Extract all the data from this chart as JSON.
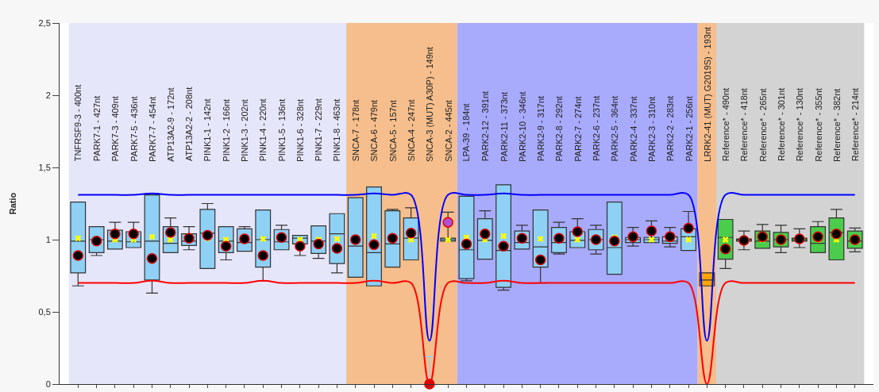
{
  "chart_data": {
    "type": "box",
    "ylabel": "Ratio",
    "categories": [
      "TNFRSF9-3 - 400nt",
      "PARK7-1 - 427nt",
      "PARK7-3 - 409nt",
      "PARK7-5 - 436nt",
      "PARK7-7 - 454nt",
      "ATP13A2-9 - 172nt",
      "ATP13A2-2 - 208nt",
      "PINK1-1 - 142nt",
      "PINK1-2 - 166nt",
      "PINK1-3 - 202nt",
      "PINK1-4 - 220nt",
      "PINK1-5 - 136nt",
      "PINK1-6 - 328nt",
      "PINK1-7 - 229nt",
      "PINK1-8 - 463nt",
      "SNCA-7 - 178nt",
      "SNCA-6 - 479nt",
      "SNCA-5 - 157nt",
      "SNCA-4 - 247nt",
      "SNCA-3 (MUT) A30P) - 149nt",
      "SNCA-2 - 445nt",
      "LPA-39 - 184nt",
      "PARK2-12 - 391nt",
      "PARK2-11 - 373nt",
      "PARK2-10 - 346nt",
      "PARK2-9 - 317nt",
      "PARK2-8 - 292nt",
      "PARK2-7 - 274nt",
      "PARK2-6 - 237nt",
      "PARK2-5 - 364nt",
      "PARK2-4 - 337nt",
      "PARK2-3 - 310nt",
      "PARK2-2 - 283nt",
      "PARK2-1 - 256nt",
      "LRRK2-41 (MUT) G2019S) - 193nt",
      "Reference* - 490nt",
      "Reference* - 418nt",
      "Reference* - 265nt",
      "Reference* - 301nt",
      "Reference* - 130nt",
      "Reference* - 355nt",
      "Reference* - 382nt",
      "Reference* - 214nt"
    ],
    "ylim": [
      0,
      2.5
    ],
    "yticks": [
      0,
      {
        "value": 0.5,
        "label": "0,5"
      },
      1,
      {
        "value": 1.5,
        "label": "1,5"
      },
      2,
      {
        "value": 2.5,
        "label": "2,5"
      }
    ],
    "grid": false,
    "bands": [
      {
        "axis": "x",
        "from": "TNFRSF9-3 - 400nt",
        "to": "PINK1-8 - 463nt",
        "color": "#e6e6fa"
      },
      {
        "axis": "x",
        "from": "SNCA-7 - 178nt",
        "to": "SNCA-2 - 445nt",
        "color": "#f5be8c"
      },
      {
        "axis": "x",
        "from": "LPA-39 - 184nt",
        "to": "PARK2-1 - 256nt",
        "color": "#a8aafc"
      },
      {
        "axis": "x",
        "from": "LRRK2-41 (MUT) G2019S) - 193nt",
        "to": "LRRK2-41 (MUT) G2019S) - 193nt",
        "color": "#f5be8c"
      },
      {
        "axis": "x",
        "from": "Reference* - 490nt",
        "to": "Reference* - 214nt",
        "color": "#d3d3d3"
      }
    ],
    "series": [
      {
        "colors": [
          "#8fd0f5",
          "#8fd0f5",
          "#8fd0f5",
          "#8fd0f5",
          "#8fd0f5",
          "#8fd0f5",
          "#8fd0f5",
          "#8fd0f5",
          "#8fd0f5",
          "#8fd0f5",
          "#8fd0f5",
          "#8fd0f5",
          "#8fd0f5",
          "#8fd0f5",
          "#8fd0f5",
          "#8fd0f5",
          "#8fd0f5",
          "#8fd0f5",
          "#8fd0f5",
          "#8fd0f5",
          "#8fd0f5",
          "#8fd0f5",
          "#8fd0f5",
          "#8fd0f5",
          "#8fd0f5",
          "#8fd0f5",
          "#8fd0f5",
          "#8fd0f5",
          "#8fd0f5",
          "#8fd0f5",
          "#8fd0f5",
          "#8fd0f5",
          "#8fd0f5",
          "#8fd0f5",
          "#ffa500",
          "#4ccc4c",
          "#4ccc4c",
          "#4ccc4c",
          "#4ccc4c",
          "#4ccc4c",
          "#4ccc4c",
          "#4ccc4c",
          "#4ccc4c"
        ],
        "boxes": [
          {
            "low": 0.68,
            "q1": 0.77,
            "median": 0.99,
            "q3": 1.26,
            "high": 1.26,
            "mean": 1.01
          },
          {
            "low": 0.89,
            "q1": 0.91,
            "median": 1.0,
            "q3": 1.09,
            "high": 1.09
          },
          {
            "low": 0.935,
            "q1": 0.935,
            "median": 0.99,
            "q3": 1.065,
            "high": 1.12,
            "mean": 1.0
          },
          {
            "low": 0.945,
            "q1": 0.945,
            "median": 0.985,
            "q3": 1.055,
            "high": 1.12,
            "mean": 1.0
          },
          {
            "low": 0.63,
            "q1": 0.72,
            "median": 0.99,
            "q3": 1.31,
            "high": 1.31,
            "mean": 1.02
          },
          {
            "low": 0.91,
            "q1": 0.91,
            "median": 0.975,
            "q3": 1.09,
            "high": 1.15,
            "mean": 1.0
          },
          {
            "low": 0.93,
            "q1": 0.96,
            "median": 0.99,
            "q3": 1.04,
            "high": 1.09
          },
          {
            "low": 0.8,
            "q1": 0.8,
            "median": 1.045,
            "q3": 1.21,
            "high": 1.25,
            "mean": 1.01
          },
          {
            "low": 0.86,
            "q1": 0.91,
            "median": 0.99,
            "q3": 1.09,
            "high": 1.09,
            "mean": 1.0
          },
          {
            "low": 0.92,
            "q1": 0.92,
            "median": 0.98,
            "q3": 1.075,
            "high": 1.09
          },
          {
            "low": 0.715,
            "q1": 0.81,
            "median": 1.0,
            "q3": 1.205,
            "high": 1.205,
            "mean": 1.005
          },
          {
            "low": 0.93,
            "q1": 0.93,
            "median": 0.985,
            "q3": 1.07,
            "high": 1.1
          },
          {
            "low": 0.89,
            "q1": 0.97,
            "median": 1.01,
            "q3": 1.03,
            "high": 1.03,
            "mean": 1.0
          },
          {
            "low": 0.87,
            "q1": 0.905,
            "median": 0.99,
            "q3": 1.095,
            "high": 1.095,
            "mean": 1.0
          },
          {
            "low": 0.77,
            "q1": 0.835,
            "median": 1.04,
            "q3": 1.18,
            "high": 1.18,
            "mean": 1.005
          },
          {
            "low": 0.74,
            "q1": 0.74,
            "median": 0.955,
            "q3": 1.29,
            "high": 1.29
          },
          {
            "low": 0.68,
            "q1": 0.68,
            "median": 0.91,
            "q3": 1.365,
            "high": 1.365,
            "mean": 1.025
          },
          {
            "low": 0.81,
            "q1": 0.81,
            "median": 0.97,
            "q3": 1.2,
            "high": 1.21
          },
          {
            "low": 0.86,
            "q1": 0.86,
            "median": 1.01,
            "q3": 1.15,
            "high": 1.22,
            "mean": 1.0
          },
          {
            "low": 0,
            "q1": 0,
            "median": 0,
            "q3": 0,
            "high": 0.19
          },
          {
            "low": 0.99,
            "q1": 0.99,
            "median": 1.0,
            "q3": 1.01,
            "high": 1.19,
            "mean": 1.0
          },
          {
            "low": 0.715,
            "q1": 0.73,
            "median": 0.93,
            "q3": 1.3,
            "high": 1.3,
            "mean": 1.015
          },
          {
            "low": 0.865,
            "q1": 0.865,
            "median": 0.995,
            "q3": 1.145,
            "high": 1.2,
            "mean": 1.0
          },
          {
            "low": 0.65,
            "q1": 0.67,
            "median": 0.925,
            "q3": 1.38,
            "high": 1.38,
            "mean": 1.025
          },
          {
            "low": 0.935,
            "q1": 0.935,
            "median": 0.98,
            "q3": 1.06,
            "high": 1.1
          },
          {
            "low": 0.7,
            "q1": 0.81,
            "median": 0.95,
            "q3": 1.205,
            "high": 1.205,
            "mean": 1.005
          },
          {
            "low": 0.9,
            "q1": 0.91,
            "median": 0.98,
            "q3": 1.085,
            "high": 1.12
          },
          {
            "low": 0.945,
            "q1": 0.945,
            "median": 0.995,
            "q3": 1.055,
            "high": 1.145,
            "mean": 1.0
          },
          {
            "low": 0.9,
            "q1": 0.93,
            "median": 1.0,
            "q3": 1.07,
            "high": 1.1
          },
          {
            "low": 0.76,
            "q1": 0.76,
            "median": 0.945,
            "q3": 1.26,
            "high": 1.26,
            "mean": 1.015
          },
          {
            "low": 0.955,
            "q1": 0.98,
            "median": 1.0,
            "q3": 1.015,
            "high": 1.085
          },
          {
            "low": 0.98,
            "q1": 0.98,
            "median": 1.0,
            "q3": 1.015,
            "high": 1.13,
            "mean": 1.0
          },
          {
            "low": 0.95,
            "q1": 0.975,
            "median": 0.99,
            "q3": 1.02,
            "high": 1.085
          },
          {
            "low": 0.925,
            "q1": 0.925,
            "median": 1.02,
            "q3": 1.075,
            "high": 1.195,
            "mean": 1.0
          },
          {
            "low": 0.68,
            "q1": 0.68,
            "median": 0.72,
            "q3": 0.77,
            "high": 0.77
          },
          {
            "low": 0.8,
            "q1": 0.865,
            "median": 1.015,
            "q3": 1.14,
            "high": 1.14,
            "mean": 1.0
          },
          {
            "low": 0.93,
            "q1": 0.99,
            "median": 1.0,
            "q3": 1.005,
            "high": 1.06
          },
          {
            "low": 0.94,
            "q1": 0.94,
            "median": 0.99,
            "q3": 1.06,
            "high": 1.105,
            "mean": 1.0
          },
          {
            "low": 0.91,
            "q1": 0.95,
            "median": 1.0,
            "q3": 1.05,
            "high": 1.1
          },
          {
            "low": 0.945,
            "q1": 0.99,
            "median": 1.0,
            "q3": 1.01,
            "high": 1.075
          },
          {
            "low": 0.91,
            "q1": 0.91,
            "median": 0.975,
            "q3": 1.09,
            "high": 1.125,
            "mean": 1.0
          },
          {
            "low": 0.86,
            "q1": 0.86,
            "median": 1.05,
            "q3": 1.15,
            "high": 1.21,
            "mean": 1.0
          },
          {
            "low": 0.915,
            "q1": 0.94,
            "median": 0.99,
            "q3": 1.06,
            "high": 1.08
          }
        ]
      },
      {
        "type": "scatter",
        "marker": "circle",
        "colors": [
          "#000000",
          "#000000",
          "#000000",
          "#000000",
          "#000000",
          "#000000",
          "#000000",
          "#000000",
          "#000000",
          "#000000",
          "#000000",
          "#000000",
          "#000000",
          "#000000",
          "#000000",
          "#000000",
          "#000000",
          "#000000",
          "#000000",
          "#e00000",
          "#b050d8",
          "#000000",
          "#000000",
          "#000000",
          "#000000",
          "#000000",
          "#000000",
          "#000000",
          "#000000",
          "#000000",
          "#000000",
          "#000000",
          "#000000",
          "#000000",
          "#000000",
          "#000000",
          "#000000",
          "#000000",
          "#000000",
          "#000000",
          "#000000",
          "#000000",
          "#000000"
        ],
        "values": [
          0.89,
          0.99,
          1.04,
          1.04,
          0.87,
          1.05,
          1.01,
          1.03,
          0.955,
          1.005,
          0.89,
          1.015,
          0.955,
          0.97,
          0.94,
          1.0,
          0.965,
          1.01,
          1.045,
          0,
          1.12,
          0.97,
          1.04,
          0.955,
          1.01,
          0.86,
          1.01,
          1.055,
          1.0,
          0.99,
          1.02,
          1.06,
          1.02,
          1.08,
          null,
          0.935,
          0.995,
          1.02,
          1.0,
          1.005,
          1.02,
          1.04,
          1.0
        ]
      },
      {
        "type": "line",
        "color": "#0000ff",
        "values": [
          1.31,
          1.31,
          1.31,
          1.31,
          1.32,
          1.31,
          1.31,
          1.31,
          1.31,
          1.31,
          1.31,
          1.31,
          1.31,
          1.31,
          1.31,
          1.31,
          1.32,
          1.31,
          1.31,
          0.3,
          1.31,
          1.31,
          1.31,
          1.32,
          1.31,
          1.31,
          1.31,
          1.31,
          1.31,
          1.31,
          1.31,
          1.31,
          1.31,
          1.31,
          0.3,
          1.31,
          1.31,
          1.31,
          1.31,
          1.31,
          1.31,
          1.31,
          1.31
        ]
      },
      {
        "type": "line",
        "color": "#ff0000",
        "values": [
          0.7,
          0.7,
          0.7,
          0.7,
          0.715,
          0.7,
          0.7,
          0.7,
          0.7,
          0.7,
          0.715,
          0.7,
          0.7,
          0.7,
          0.7,
          0.7,
          0.715,
          0.7,
          0.7,
          0,
          0.7,
          0.7,
          0.7,
          0.715,
          0.7,
          0.7,
          0.7,
          0.7,
          0.7,
          0.7,
          0.7,
          0.7,
          0.7,
          0.7,
          0,
          0.7,
          0.7,
          0.7,
          0.7,
          0.7,
          0.7,
          0.7,
          0.7
        ]
      }
    ]
  }
}
